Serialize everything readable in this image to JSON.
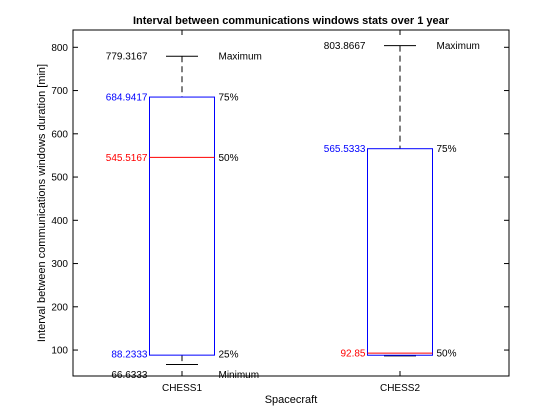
{
  "chart_data": {
    "type": "box",
    "title": "Interval between communications windows stats over 1 year",
    "xlabel": "Spacecraft",
    "ylabel": "Interval between communications windows duration [min]",
    "ylim": [
      40,
      840
    ],
    "yticks": [
      100,
      200,
      300,
      400,
      500,
      600,
      700,
      800
    ],
    "grid": false,
    "categories": [
      "CHESS1",
      "CHESS2"
    ],
    "boxes": [
      {
        "category": "CHESS1",
        "min": 66.6333,
        "q1": 88.2333,
        "median": 545.5167,
        "q3": 684.9417,
        "max": 779.3167,
        "annotations": [
          {
            "stat": "max",
            "value_text": "779.3167",
            "label": "Maximum",
            "color": "#000000"
          },
          {
            "stat": "q3",
            "value_text": "684.9417",
            "label": "75%",
            "color": "#0000ff"
          },
          {
            "stat": "median",
            "value_text": "545.5167",
            "label": "50%",
            "color": "#ff0000"
          },
          {
            "stat": "q1",
            "value_text": "88.2333",
            "label": "25%",
            "color": "#0000ff"
          },
          {
            "stat": "min",
            "value_text": "66.6333",
            "label": "Minimum",
            "color": "#000000"
          }
        ]
      },
      {
        "category": "CHESS2",
        "min": 86.5,
        "q1": 88.0,
        "median": 92.85,
        "q3": 565.5333,
        "max": 803.8667,
        "annotations": [
          {
            "stat": "max",
            "value_text": "803.8667",
            "label": "Maximum",
            "color": "#000000"
          },
          {
            "stat": "q3",
            "value_text": "565.5333",
            "label": "75%",
            "color": "#0000ff"
          },
          {
            "stat": "median",
            "value_text": "92.85",
            "label": "50%",
            "color": "#ff0000"
          }
        ]
      }
    ],
    "colors": {
      "box": "#0000ff",
      "median": "#ff0000",
      "whisker": "#000000"
    }
  }
}
